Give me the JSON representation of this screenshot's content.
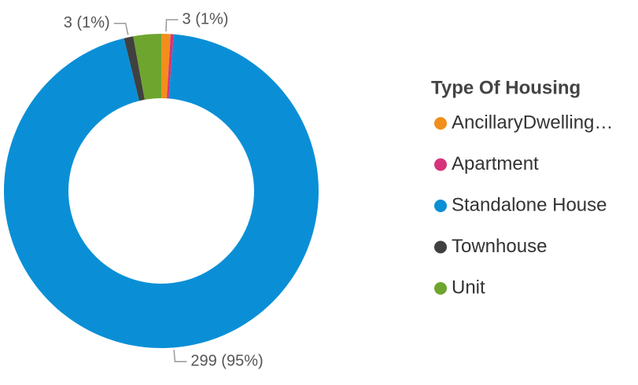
{
  "chart_data": {
    "type": "donut",
    "legend_title": "Type Of Housing",
    "categories": [
      "AncillaryDwelling…",
      "Apartment",
      "Standalone House",
      "Townhouse",
      "Unit"
    ],
    "values": [
      3,
      1,
      299,
      3,
      9
    ],
    "value_labels": [
      "3 (1%)",
      null,
      "299 (95%)",
      "3 (1%)",
      null
    ],
    "colors": [
      "#f28e1c",
      "#d6337a",
      "#0a8fd6",
      "#404040",
      "#6ea52f"
    ],
    "legend": "right"
  }
}
